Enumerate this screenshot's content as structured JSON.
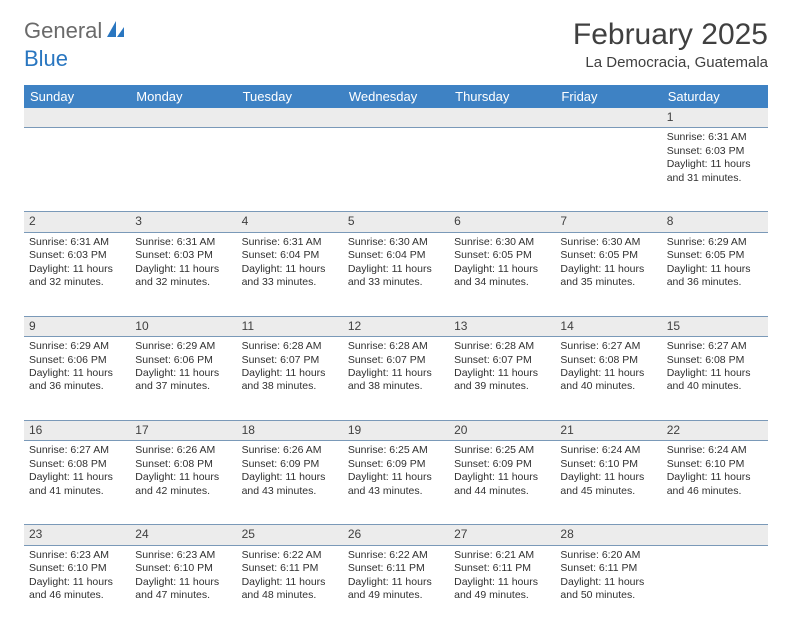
{
  "logo": {
    "gray": "General",
    "blue": "Blue"
  },
  "title": "February 2025",
  "location": "La Democracia, Guatemala",
  "colors": {
    "header_bg": "#3e82c4",
    "daynum_bg": "#ececec",
    "row_border": "#7a99b8",
    "text": "#303030",
    "title_text": "#404040",
    "logo_gray": "#6a6a6a",
    "logo_blue": "#2976c0"
  },
  "weekdays": [
    "Sunday",
    "Monday",
    "Tuesday",
    "Wednesday",
    "Thursday",
    "Friday",
    "Saturday"
  ],
  "weeks": [
    [
      null,
      null,
      null,
      null,
      null,
      null,
      {
        "n": "1",
        "sr": "6:31 AM",
        "ss": "6:03 PM",
        "dl": "11 hours and 31 minutes."
      }
    ],
    [
      {
        "n": "2",
        "sr": "6:31 AM",
        "ss": "6:03 PM",
        "dl": "11 hours and 32 minutes."
      },
      {
        "n": "3",
        "sr": "6:31 AM",
        "ss": "6:03 PM",
        "dl": "11 hours and 32 minutes."
      },
      {
        "n": "4",
        "sr": "6:31 AM",
        "ss": "6:04 PM",
        "dl": "11 hours and 33 minutes."
      },
      {
        "n": "5",
        "sr": "6:30 AM",
        "ss": "6:04 PM",
        "dl": "11 hours and 33 minutes."
      },
      {
        "n": "6",
        "sr": "6:30 AM",
        "ss": "6:05 PM",
        "dl": "11 hours and 34 minutes."
      },
      {
        "n": "7",
        "sr": "6:30 AM",
        "ss": "6:05 PM",
        "dl": "11 hours and 35 minutes."
      },
      {
        "n": "8",
        "sr": "6:29 AM",
        "ss": "6:05 PM",
        "dl": "11 hours and 36 minutes."
      }
    ],
    [
      {
        "n": "9",
        "sr": "6:29 AM",
        "ss": "6:06 PM",
        "dl": "11 hours and 36 minutes."
      },
      {
        "n": "10",
        "sr": "6:29 AM",
        "ss": "6:06 PM",
        "dl": "11 hours and 37 minutes."
      },
      {
        "n": "11",
        "sr": "6:28 AM",
        "ss": "6:07 PM",
        "dl": "11 hours and 38 minutes."
      },
      {
        "n": "12",
        "sr": "6:28 AM",
        "ss": "6:07 PM",
        "dl": "11 hours and 38 minutes."
      },
      {
        "n": "13",
        "sr": "6:28 AM",
        "ss": "6:07 PM",
        "dl": "11 hours and 39 minutes."
      },
      {
        "n": "14",
        "sr": "6:27 AM",
        "ss": "6:08 PM",
        "dl": "11 hours and 40 minutes."
      },
      {
        "n": "15",
        "sr": "6:27 AM",
        "ss": "6:08 PM",
        "dl": "11 hours and 40 minutes."
      }
    ],
    [
      {
        "n": "16",
        "sr": "6:27 AM",
        "ss": "6:08 PM",
        "dl": "11 hours and 41 minutes."
      },
      {
        "n": "17",
        "sr": "6:26 AM",
        "ss": "6:08 PM",
        "dl": "11 hours and 42 minutes."
      },
      {
        "n": "18",
        "sr": "6:26 AM",
        "ss": "6:09 PM",
        "dl": "11 hours and 43 minutes."
      },
      {
        "n": "19",
        "sr": "6:25 AM",
        "ss": "6:09 PM",
        "dl": "11 hours and 43 minutes."
      },
      {
        "n": "20",
        "sr": "6:25 AM",
        "ss": "6:09 PM",
        "dl": "11 hours and 44 minutes."
      },
      {
        "n": "21",
        "sr": "6:24 AM",
        "ss": "6:10 PM",
        "dl": "11 hours and 45 minutes."
      },
      {
        "n": "22",
        "sr": "6:24 AM",
        "ss": "6:10 PM",
        "dl": "11 hours and 46 minutes."
      }
    ],
    [
      {
        "n": "23",
        "sr": "6:23 AM",
        "ss": "6:10 PM",
        "dl": "11 hours and 46 minutes."
      },
      {
        "n": "24",
        "sr": "6:23 AM",
        "ss": "6:10 PM",
        "dl": "11 hours and 47 minutes."
      },
      {
        "n": "25",
        "sr": "6:22 AM",
        "ss": "6:11 PM",
        "dl": "11 hours and 48 minutes."
      },
      {
        "n": "26",
        "sr": "6:22 AM",
        "ss": "6:11 PM",
        "dl": "11 hours and 49 minutes."
      },
      {
        "n": "27",
        "sr": "6:21 AM",
        "ss": "6:11 PM",
        "dl": "11 hours and 49 minutes."
      },
      {
        "n": "28",
        "sr": "6:20 AM",
        "ss": "6:11 PM",
        "dl": "11 hours and 50 minutes."
      },
      null
    ]
  ],
  "labels": {
    "sunrise": "Sunrise: ",
    "sunset": "Sunset: ",
    "daylight": "Daylight: "
  }
}
